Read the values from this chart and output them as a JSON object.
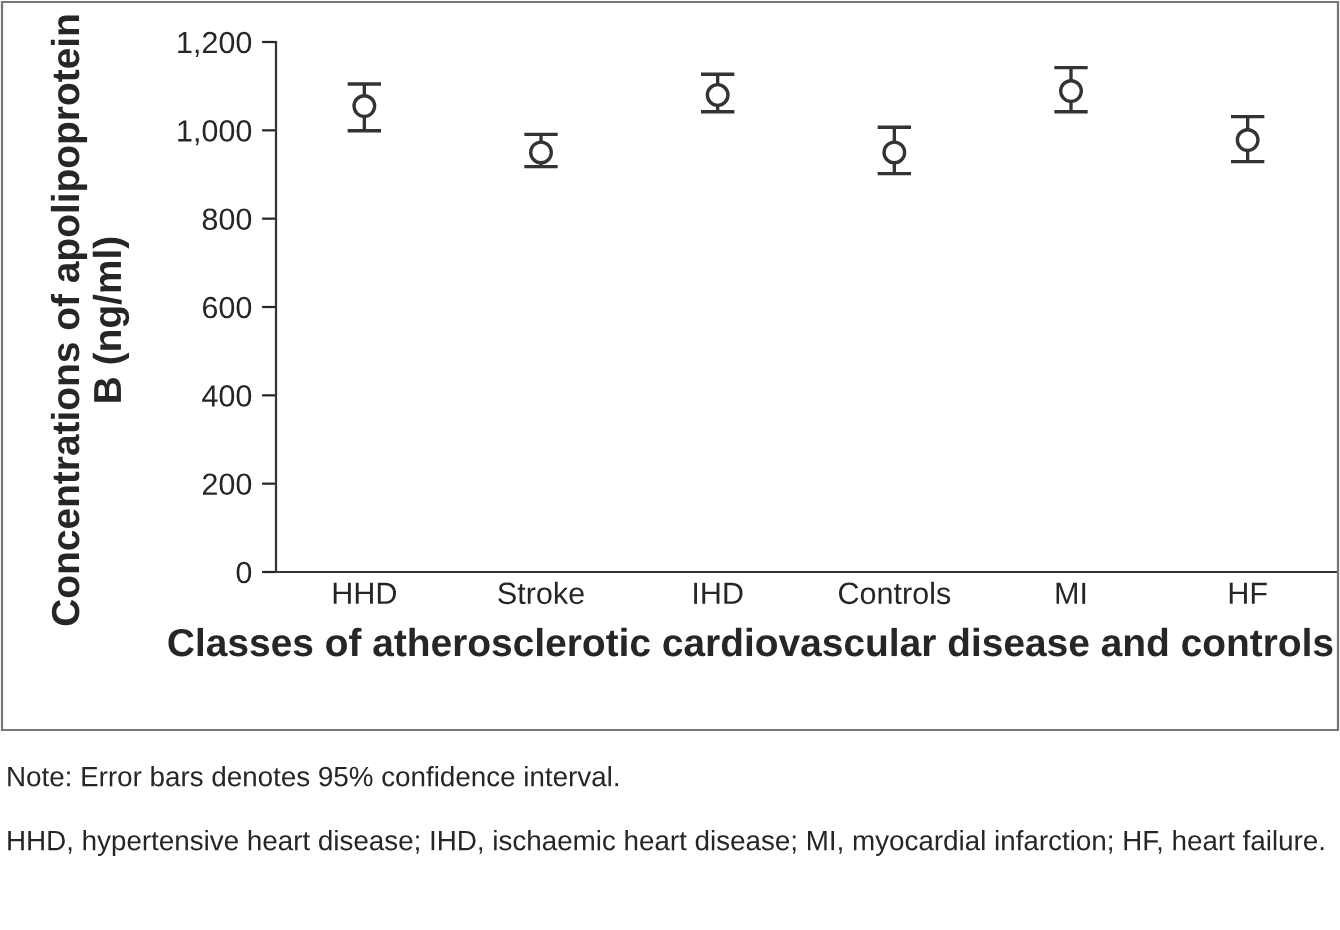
{
  "chart_data": {
    "type": "scatter",
    "categories": [
      "HHD",
      "Stroke",
      "IHD",
      "Controls",
      "MI",
      "HF"
    ],
    "values": [
      1055,
      950,
      1080,
      950,
      1089,
      978
    ],
    "errors": [
      [
        999,
        1105
      ],
      [
        918,
        991
      ],
      [
        1042,
        1127
      ],
      [
        902,
        1007
      ],
      [
        1042,
        1142
      ],
      [
        929,
        1031
      ]
    ],
    "color": "#333333",
    "marker": "circle",
    "ylim": [
      0,
      1200
    ],
    "yticks": [
      {
        "value": 0,
        "label": "0"
      },
      {
        "value": 200,
        "label": "200"
      },
      {
        "value": 400,
        "label": "400"
      },
      {
        "value": 600,
        "label": "600"
      },
      {
        "value": 800,
        "label": "800"
      },
      {
        "value": 1000,
        "label": "1,000"
      },
      {
        "value": 1200,
        "label": "1,200"
      }
    ],
    "xlabel": "Classes of atherosclerotic cardiovascular disease and controls",
    "ylabel": "Concentrations of apolipoprotein B (ng/ml)",
    "grid": false,
    "legend": false,
    "annotations": [
      "Note: Error bars denotes 95% confidence interval.",
      "HHD, hypertensive heart disease; IHD, ischaemic heart disease; MI, myocardial infarction; HF, heart failure."
    ]
  }
}
